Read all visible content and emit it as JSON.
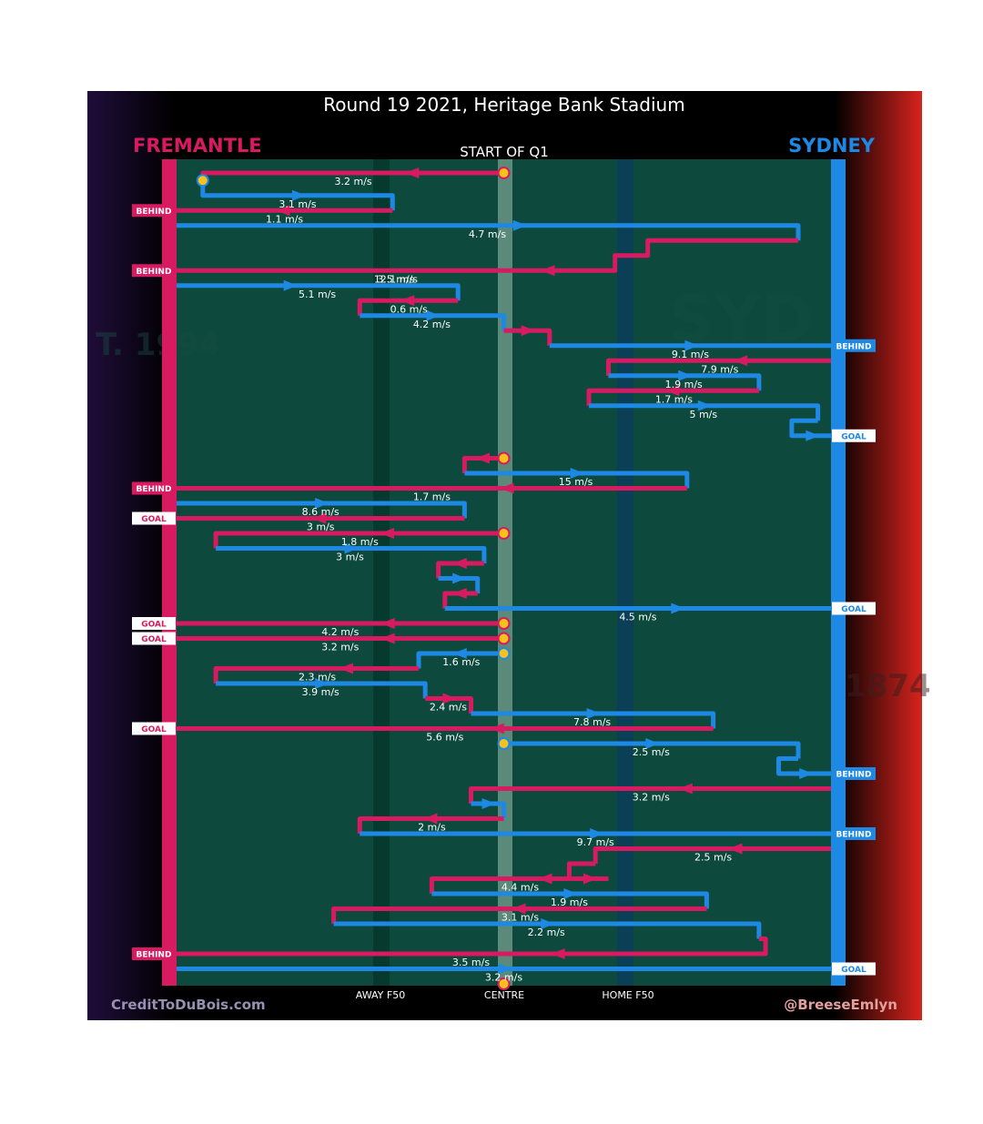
{
  "title": "Round 19 2021, Heritage Bank Stadium",
  "home_team": "FREMANTLE",
  "away_team": "SYDNEY",
  "quarter_label": "START OF Q1",
  "zone_labels": {
    "away_f50": "AWAY F50",
    "centre": "CENTRE",
    "home_f50": "HOME F50"
  },
  "credit_left": "CreditToDuBois.com",
  "credit_right": "@BreeseEmlyn",
  "watermarks": {
    "left_year": "T. 1994",
    "right_year": "1874",
    "right_word": "SYD"
  },
  "colors": {
    "fremantle": "#d81b60",
    "sydney": "#1e88e5",
    "field": "#0d4a3d",
    "band_dark": "#063a2e",
    "centre_band": "#6f9a8b",
    "stoppage": "#f9c21a",
    "sydney_title": "#1e88e5",
    "fremantle_title": "#d81b60"
  },
  "chart_data": {
    "type": "line",
    "description_x": "horizontal field position",
    "x_range": [
      0,
      1
    ],
    "sequence": [
      {
        "team": "fremantle",
        "start_stoppage": true,
        "path": [
          [
            0.5,
            0
          ],
          [
            0.04,
            0
          ],
          [
            0.04,
            0.5
          ]
        ],
        "speed": "3.2 m/s",
        "arrow": 0.3
      },
      {
        "team": "sydney",
        "start_stoppage": true,
        "path": [
          [
            0.04,
            0.5
          ],
          [
            0.04,
            1.5
          ],
          [
            0.33,
            1.5
          ],
          [
            0.33,
            2.5
          ]
        ],
        "speed": "3.1 m/s",
        "arrow": 0.5
      },
      {
        "team": "fremantle",
        "path": [
          [
            0.33,
            2.5
          ],
          [
            0,
            2.5
          ]
        ],
        "speed": "1.1 m/s",
        "arrow": 0.5,
        "end": "BEHIND"
      },
      {
        "team": "sydney",
        "path": [
          [
            0,
            3.5
          ],
          [
            0.95,
            3.5
          ],
          [
            0.95,
            4.5
          ]
        ],
        "speed": "4.7 m/s",
        "arrow": 0.55
      },
      {
        "team": "fremantle",
        "path": [
          [
            0.95,
            4.5
          ],
          [
            0.72,
            4.5
          ],
          [
            0.72,
            5.5
          ],
          [
            0.67,
            5.5
          ],
          [
            0.67,
            6.5
          ],
          [
            0,
            6.5
          ]
        ],
        "speed": "3.5 m/s",
        "arrow": 0.15,
        "speed2": "12.1 m/s",
        "end": "BEHIND"
      },
      {
        "team": "sydney",
        "path": [
          [
            0,
            7.5
          ],
          [
            0.43,
            7.5
          ],
          [
            0.43,
            8.5
          ]
        ],
        "speed": "5.1 m/s",
        "arrow": 0.4
      },
      {
        "team": "fremantle",
        "path": [
          [
            0.43,
            8.5
          ],
          [
            0.28,
            8.5
          ],
          [
            0.28,
            9.5
          ]
        ],
        "speed": "0.6 m/s",
        "arrow": 0.5
      },
      {
        "team": "sydney",
        "path": [
          [
            0.28,
            9.5
          ],
          [
            0.5,
            9.5
          ],
          [
            0.5,
            10.5
          ]
        ],
        "speed": "4.2 m/s",
        "arrow": 0.5
      },
      {
        "team": "fremantle",
        "path": [
          [
            0.5,
            10.5
          ],
          [
            0.57,
            10.5
          ],
          [
            0.57,
            11.5
          ]
        ],
        "speed": "",
        "arrow": 0.5
      },
      {
        "team": "sydney",
        "path": [
          [
            0.57,
            11.5
          ],
          [
            1,
            11.5
          ]
        ],
        "speed": "9.1 m/s",
        "arrow": 0.5,
        "end": "BEHIND"
      },
      {
        "team": "fremantle",
        "path": [
          [
            1,
            12.5
          ],
          [
            0.66,
            12.5
          ],
          [
            0.66,
            13.5
          ]
        ],
        "speed": "7.9 m/s",
        "arrow": 0.4
      },
      {
        "team": "sydney",
        "path": [
          [
            0.66,
            13.5
          ],
          [
            0.89,
            13.5
          ],
          [
            0.89,
            14.5
          ]
        ],
        "speed": "1.9 m/s",
        "arrow": 0.5
      },
      {
        "team": "fremantle",
        "path": [
          [
            0.89,
            14.5
          ],
          [
            0.63,
            14.5
          ],
          [
            0.63,
            15.5
          ]
        ],
        "speed": "1.7 m/s",
        "arrow": 0.5
      },
      {
        "team": "sydney",
        "path": [
          [
            0.63,
            15.5
          ],
          [
            0.98,
            15.5
          ],
          [
            0.98,
            16.5
          ]
        ],
        "speed": "5 m/s",
        "arrow": 0.5
      },
      {
        "team": "sydney",
        "path": [
          [
            0.98,
            16.5
          ],
          [
            0.94,
            16.5
          ],
          [
            0.94,
            17.5
          ],
          [
            1,
            17.5
          ]
        ],
        "speed": "",
        "arrow": 0.5,
        "end": "GOAL"
      },
      {
        "team": "fremantle",
        "start_stoppage": true,
        "path": [
          [
            0.5,
            19
          ],
          [
            0.44,
            19
          ],
          [
            0.44,
            20
          ]
        ],
        "speed": "",
        "arrow": 0.5
      },
      {
        "team": "sydney",
        "path": [
          [
            0.44,
            20
          ],
          [
            0.78,
            20
          ],
          [
            0.78,
            21
          ]
        ],
        "speed": "15 m/s",
        "arrow": 0.5
      },
      {
        "team": "fremantle",
        "path": [
          [
            0.78,
            21
          ],
          [
            0,
            21
          ]
        ],
        "speed": "1.7 m/s",
        "arrow": 0.35,
        "end": "BEHIND"
      },
      {
        "team": "sydney",
        "path": [
          [
            0,
            22
          ],
          [
            0.44,
            22
          ],
          [
            0.44,
            23
          ]
        ],
        "speed": "8.6 m/s",
        "arrow": 0.5
      },
      {
        "team": "fremantle",
        "path": [
          [
            0.44,
            23
          ],
          [
            0,
            23
          ]
        ],
        "speed": "3 m/s",
        "arrow": 0.5,
        "end": "GOAL"
      },
      {
        "team": "fremantle",
        "start_stoppage": true,
        "path": [
          [
            0.5,
            24
          ],
          [
            0.06,
            24
          ],
          [
            0.06,
            25
          ]
        ],
        "speed": "1.8 m/s",
        "arrow": 0.4
      },
      {
        "team": "sydney",
        "path": [
          [
            0.06,
            25
          ],
          [
            0.47,
            25
          ],
          [
            0.47,
            26
          ]
        ],
        "speed": "3 m/s",
        "arrow": 0.5
      },
      {
        "team": "fremantle",
        "path": [
          [
            0.47,
            26
          ],
          [
            0.4,
            26
          ],
          [
            0.4,
            27
          ]
        ],
        "speed": "",
        "arrow": 0.5
      },
      {
        "team": "sydney",
        "path": [
          [
            0.4,
            27
          ],
          [
            0.46,
            27
          ],
          [
            0.46,
            28
          ]
        ],
        "speed": "",
        "arrow": 0.5
      },
      {
        "team": "fremantle",
        "path": [
          [
            0.46,
            28
          ],
          [
            0.41,
            28
          ],
          [
            0.41,
            29
          ]
        ],
        "speed": "",
        "arrow": 0.5
      },
      {
        "team": "sydney",
        "path": [
          [
            0.41,
            29
          ],
          [
            1,
            29
          ]
        ],
        "speed": "4.5 m/s",
        "arrow": 0.6,
        "end": "GOAL"
      },
      {
        "team": "fremantle",
        "start_stoppage": true,
        "path": [
          [
            0.5,
            30
          ],
          [
            0,
            30
          ]
        ],
        "speed": "4.2 m/s",
        "arrow": 0.35,
        "end": "GOAL"
      },
      {
        "team": "fremantle",
        "start_stoppage": true,
        "path": [
          [
            0.5,
            31
          ],
          [
            0,
            31
          ]
        ],
        "speed": "3.2 m/s",
        "arrow": 0.35,
        "end": "GOAL"
      },
      {
        "team": "sydney",
        "start_stoppage": true,
        "path": [
          [
            0.5,
            32
          ],
          [
            0.37,
            32
          ],
          [
            0.37,
            33
          ]
        ],
        "speed": "1.6 m/s",
        "arrow": 0.5
      },
      {
        "team": "fremantle",
        "path": [
          [
            0.37,
            33
          ],
          [
            0.06,
            33
          ],
          [
            0.06,
            34
          ]
        ],
        "speed": "2.3 m/s",
        "arrow": 0.35
      },
      {
        "team": "sydney",
        "path": [
          [
            0.06,
            34
          ],
          [
            0.38,
            34
          ],
          [
            0.38,
            35
          ]
        ],
        "speed": "3.9 m/s",
        "arrow": 0.5
      },
      {
        "team": "fremantle",
        "path": [
          [
            0.38,
            35
          ],
          [
            0.45,
            35
          ],
          [
            0.45,
            36
          ]
        ],
        "speed": "2.4 m/s",
        "arrow": 0.5
      },
      {
        "team": "sydney",
        "path": [
          [
            0.45,
            36
          ],
          [
            0.82,
            36
          ],
          [
            0.82,
            37
          ]
        ],
        "speed": "7.8 m/s",
        "arrow": 0.5
      },
      {
        "team": "fremantle",
        "path": [
          [
            0.82,
            37
          ],
          [
            0,
            37
          ]
        ],
        "speed": "5.6 m/s",
        "arrow": 0.4,
        "end": "GOAL"
      },
      {
        "team": "sydney",
        "start_stoppage": true,
        "path": [
          [
            0.5,
            38
          ],
          [
            0.95,
            38
          ],
          [
            0.95,
            39
          ]
        ],
        "speed": "2.5 m/s",
        "arrow": 0.5
      },
      {
        "team": "sydney",
        "path": [
          [
            0.95,
            39
          ],
          [
            0.92,
            39
          ],
          [
            0.92,
            40
          ],
          [
            1,
            40
          ]
        ],
        "speed": "",
        "arrow": 0.5,
        "end": "BEHIND"
      },
      {
        "team": "fremantle",
        "path": [
          [
            1,
            41
          ],
          [
            0.45,
            41
          ],
          [
            0.45,
            42
          ]
        ],
        "speed": "3.2 m/s",
        "arrow": 0.4
      },
      {
        "team": "sydney",
        "path": [
          [
            0.45,
            42
          ],
          [
            0.5,
            42
          ],
          [
            0.5,
            43
          ]
        ],
        "speed": "",
        "arrow": 0.5
      },
      {
        "team": "fremantle",
        "path": [
          [
            0.5,
            43
          ],
          [
            0.28,
            43
          ],
          [
            0.28,
            44
          ]
        ],
        "speed": "2 m/s",
        "arrow": 0.5
      },
      {
        "team": "sydney",
        "path": [
          [
            0.28,
            44
          ],
          [
            1,
            44
          ]
        ],
        "speed": "9.7 m/s",
        "arrow": 0.5,
        "end": "BEHIND"
      },
      {
        "team": "fremantle",
        "path": [
          [
            1,
            45
          ],
          [
            0.64,
            45
          ],
          [
            0.64,
            46
          ]
        ],
        "speed": "2.5 m/s",
        "arrow": 0.4
      },
      {
        "team": "fremantle",
        "path": [
          [
            0.64,
            46
          ],
          [
            0.6,
            46
          ],
          [
            0.6,
            47
          ],
          [
            0.66,
            47
          ]
        ],
        "speed": "",
        "arrow": 0.5
      },
      {
        "team": "fremantle",
        "path": [
          [
            0.66,
            47
          ],
          [
            0.39,
            47
          ],
          [
            0.39,
            48
          ]
        ],
        "speed": "4.4 m/s",
        "arrow": 0.35
      },
      {
        "team": "sydney",
        "path": [
          [
            0.39,
            48
          ],
          [
            0.81,
            48
          ],
          [
            0.81,
            49
          ]
        ],
        "speed": "1.9 m/s",
        "arrow": 0.5
      },
      {
        "team": "fremantle",
        "path": [
          [
            0.81,
            49
          ],
          [
            0.24,
            49
          ],
          [
            0.24,
            50
          ]
        ],
        "speed": "3.1 m/s",
        "arrow": 0.5
      },
      {
        "team": "sydney",
        "path": [
          [
            0.24,
            50
          ],
          [
            0.89,
            50
          ],
          [
            0.89,
            51
          ]
        ],
        "speed": "2.2 m/s",
        "arrow": 0.5
      },
      {
        "team": "fremantle",
        "path": [
          [
            0.89,
            51
          ],
          [
            0.9,
            51
          ],
          [
            0.9,
            52
          ],
          [
            0,
            52
          ]
        ],
        "speed": "3.5 m/s",
        "arrow": 0.35,
        "end": "BEHIND"
      },
      {
        "team": "sydney",
        "path": [
          [
            0,
            53
          ],
          [
            1,
            53
          ]
        ],
        "speed": "3.2 m/s",
        "arrow": 0.5,
        "end": "GOAL"
      },
      {
        "team": "fremantle",
        "start_stoppage": true,
        "path": [
          [
            0.5,
            54
          ],
          [
            0.5,
            54
          ]
        ],
        "speed": "",
        "arrow": 0.5
      }
    ]
  }
}
